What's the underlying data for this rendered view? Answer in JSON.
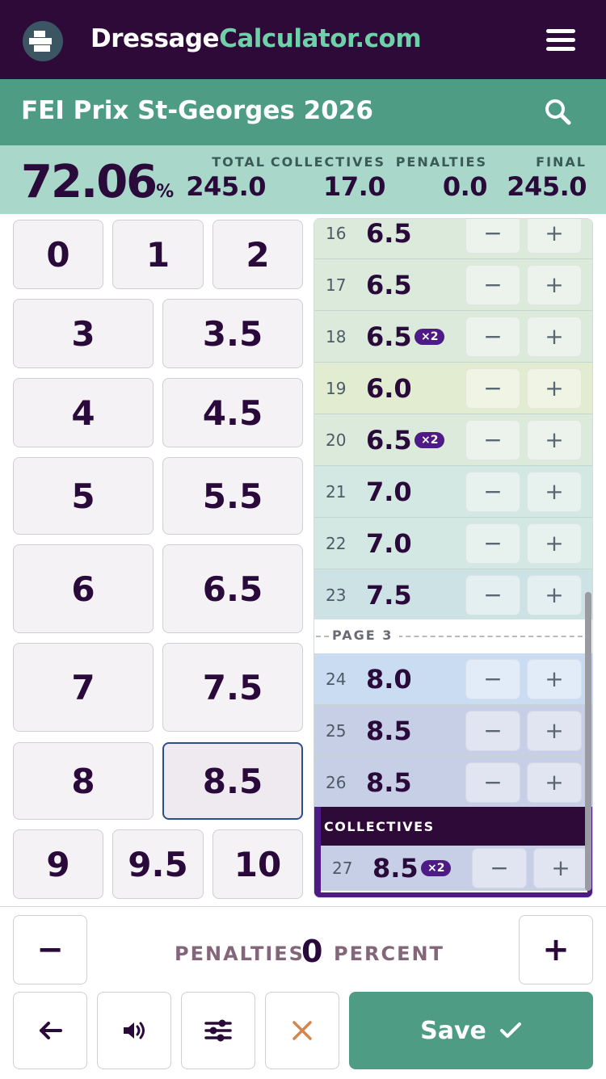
{
  "header": {
    "brand_main": "Dressage",
    "brand_accent": "Calculator.com",
    "logo_icon": "dressage-logo-icon",
    "menu_icon": "hamburger-menu-icon"
  },
  "test": {
    "title": "FEI Prix St-Georges 2026",
    "search_icon": "search-icon"
  },
  "scores": {
    "percentage": "72.06",
    "percentage_sign": "%",
    "total_label": "TOTAL",
    "total": "245.0",
    "collectives_label": "COLLECTIVES",
    "collectives": "17.0",
    "penalties_label": "PENALTIES",
    "penalties": "0.0",
    "final_label": "FINAL",
    "final": "245.0"
  },
  "keypad": {
    "k0": "0",
    "k1": "1",
    "k2": "2",
    "k3": "3",
    "k3_5": "3.5",
    "k4": "4",
    "k4_5": "4.5",
    "k5": "5",
    "k5_5": "5.5",
    "k6": "6",
    "k6_5": "6.5",
    "k7": "7",
    "k7_5": "7.5",
    "k8": "8",
    "k8_5": "8.5",
    "k9": "9",
    "k9_5": "9.5",
    "k10": "10",
    "selected": "8.5"
  },
  "movements": [
    {
      "num": "16",
      "score": "6.5",
      "coef": ""
    },
    {
      "num": "17",
      "score": "6.5",
      "coef": ""
    },
    {
      "num": "18",
      "score": "6.5",
      "coef": "×2"
    },
    {
      "num": "19",
      "score": "6.0",
      "coef": ""
    },
    {
      "num": "20",
      "score": "6.5",
      "coef": "×2"
    },
    {
      "num": "21",
      "score": "7.0",
      "coef": ""
    },
    {
      "num": "22",
      "score": "7.0",
      "coef": ""
    },
    {
      "num": "23",
      "score": "7.5",
      "coef": ""
    },
    {
      "num": "24",
      "score": "8.0",
      "coef": ""
    },
    {
      "num": "25",
      "score": "8.5",
      "coef": ""
    },
    {
      "num": "26",
      "score": "8.5",
      "coef": ""
    },
    {
      "num": "27",
      "score": "8.5",
      "coef": "×2"
    }
  ],
  "row_colors": {
    "16": "#dceadc",
    "17": "#dceadc",
    "18": "#dceadc",
    "19": "#e2ecd0",
    "20": "#dceadc",
    "21": "#d3e8e2",
    "22": "#d3e8e2",
    "23": "#cde2e4",
    "24": "#c9dcf2",
    "25": "#c6cfe6",
    "26": "#c6cfe6",
    "27": "#c6cfe6"
  },
  "step_buttons": {
    "minus": "−",
    "plus": "+"
  },
  "list": {
    "page_label": "PAGE 3",
    "collectives_header": "COLLECTIVES"
  },
  "penalty": {
    "label": "PENALTIES",
    "value": "0",
    "unit": "PERCENT",
    "minus": "−",
    "plus": "+"
  },
  "toolbar": {
    "back_icon": "arrow-left-icon",
    "sound_icon": "speaker-icon",
    "settings_icon": "sliders-icon",
    "clear_icon": "close-icon",
    "save_label": "Save",
    "save_icon": "checkmark-icon"
  },
  "colors": {
    "header_bg": "#2e0a38",
    "accent": "#4e9c83",
    "brand_accent": "#6fd1a9",
    "score_bg": "#a9d8cb",
    "coef_badge": "#4d1a86",
    "clear_icon": "#d4854e"
  }
}
